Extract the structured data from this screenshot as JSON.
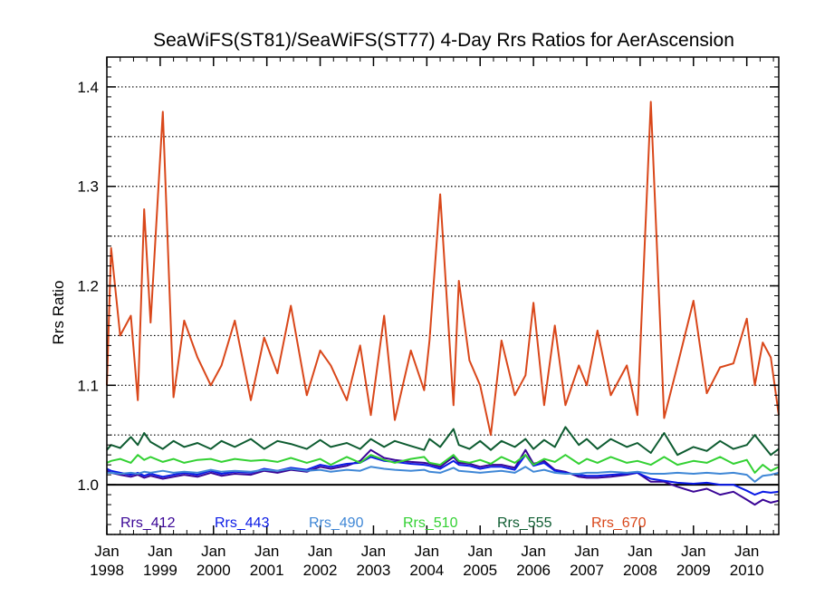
{
  "chart_data": {
    "type": "line",
    "title": "SeaWiFS(ST81)/SeaWiFS(ST77) 4-Day Rrs Ratios for AerAscension",
    "xlabel": "",
    "ylabel": "Rrs Ratio",
    "xlim": [
      1998.0,
      2010.6
    ],
    "ylim": [
      0.95,
      1.43
    ],
    "y_ticks": [
      1.0,
      1.1,
      1.2,
      1.3,
      1.4
    ],
    "y_tick_labels": [
      "1.0",
      "1.1",
      "1.2",
      "1.3",
      "1.4"
    ],
    "y_grid_dotted": [
      0.95,
      1.05,
      1.1,
      1.15,
      1.2,
      1.25,
      1.3,
      1.35,
      1.4
    ],
    "reference_line": 1.0,
    "x_ticks": [
      1998,
      1999,
      2000,
      2001,
      2002,
      2003,
      2004,
      2005,
      2006,
      2007,
      2008,
      2009,
      2010
    ],
    "x_tick_labels": [
      {
        "top": "Jan",
        "bottom": "1998"
      },
      {
        "top": "Jan",
        "bottom": "1999"
      },
      {
        "top": "Jan",
        "bottom": "2000"
      },
      {
        "top": "Jan",
        "bottom": "2001"
      },
      {
        "top": "Jan",
        "bottom": "2002"
      },
      {
        "top": "Jan",
        "bottom": "2003"
      },
      {
        "top": "Jan",
        "bottom": "2004"
      },
      {
        "top": "Jan",
        "bottom": "2005"
      },
      {
        "top": "Jan",
        "bottom": "2006"
      },
      {
        "top": "Jan",
        "bottom": "2007"
      },
      {
        "top": "Jan",
        "bottom": "2008"
      },
      {
        "top": "Jan",
        "bottom": "2009"
      },
      {
        "top": "Jan",
        "bottom": "2010"
      }
    ],
    "legend_position": "bottom",
    "x": [
      1998.0,
      1998.08,
      1998.25,
      1998.45,
      1998.58,
      1998.7,
      1998.82,
      1999.05,
      1999.25,
      1999.45,
      1999.7,
      1999.95,
      2000.15,
      2000.4,
      2000.7,
      2000.95,
      2001.2,
      2001.45,
      2001.75,
      2002.0,
      2002.2,
      2002.5,
      2002.75,
      2002.95,
      2003.2,
      2003.4,
      2003.7,
      2003.95,
      2004.05,
      2004.25,
      2004.5,
      2004.6,
      2004.8,
      2005.0,
      2005.2,
      2005.4,
      2005.65,
      2005.85,
      2006.0,
      2006.2,
      2006.4,
      2006.6,
      2006.85,
      2007.0,
      2007.2,
      2007.45,
      2007.75,
      2007.95,
      2008.2,
      2008.45,
      2008.7,
      2009.0,
      2009.25,
      2009.5,
      2009.75,
      2010.0,
      2010.15,
      2010.3,
      2010.45,
      2010.6
    ],
    "series": [
      {
        "name": "Rrs_412",
        "color": "#3a0596",
        "values": [
          1.014,
          1.012,
          1.01,
          1.008,
          1.01,
          1.007,
          1.009,
          1.006,
          1.008,
          1.01,
          1.008,
          1.012,
          1.009,
          1.011,
          1.01,
          1.014,
          1.012,
          1.015,
          1.013,
          1.018,
          1.016,
          1.019,
          1.024,
          1.035,
          1.027,
          1.025,
          1.023,
          1.022,
          1.021,
          1.018,
          1.028,
          1.022,
          1.021,
          1.018,
          1.02,
          1.02,
          1.017,
          1.035,
          1.021,
          1.024,
          1.015,
          1.013,
          1.008,
          1.007,
          1.007,
          1.008,
          1.01,
          1.012,
          1.003,
          1.003,
          0.998,
          0.993,
          0.996,
          0.99,
          0.993,
          0.985,
          0.98,
          0.985,
          0.982,
          0.984
        ]
      },
      {
        "name": "Rrs_443",
        "color": "#0a1ae6",
        "values": [
          1.016,
          1.014,
          1.012,
          1.01,
          1.012,
          1.009,
          1.011,
          1.008,
          1.01,
          1.012,
          1.01,
          1.014,
          1.011,
          1.013,
          1.012,
          1.016,
          1.014,
          1.017,
          1.015,
          1.02,
          1.018,
          1.021,
          1.022,
          1.028,
          1.024,
          1.023,
          1.021,
          1.02,
          1.019,
          1.016,
          1.024,
          1.02,
          1.019,
          1.016,
          1.018,
          1.018,
          1.015,
          1.03,
          1.019,
          1.022,
          1.014,
          1.012,
          1.01,
          1.009,
          1.009,
          1.01,
          1.011,
          1.012,
          1.006,
          1.004,
          1.002,
          1.001,
          1.002,
          1.0,
          1.0,
          0.994,
          0.99,
          0.993,
          0.992,
          0.993
        ]
      },
      {
        "name": "Rrs_490",
        "color": "#3f87d6",
        "values": [
          1.012,
          1.012,
          1.011,
          1.012,
          1.011,
          1.013,
          1.012,
          1.014,
          1.012,
          1.013,
          1.012,
          1.015,
          1.013,
          1.014,
          1.013,
          1.015,
          1.014,
          1.016,
          1.014,
          1.015,
          1.013,
          1.015,
          1.014,
          1.018,
          1.016,
          1.015,
          1.014,
          1.015,
          1.013,
          1.012,
          1.017,
          1.014,
          1.013,
          1.012,
          1.013,
          1.014,
          1.012,
          1.018,
          1.013,
          1.015,
          1.012,
          1.011,
          1.011,
          1.012,
          1.012,
          1.013,
          1.012,
          1.013,
          1.011,
          1.011,
          1.012,
          1.011,
          1.012,
          1.011,
          1.012,
          1.01,
          1.003,
          1.009,
          1.01,
          1.012
        ]
      },
      {
        "name": "Rrs_510",
        "color": "#33d133",
        "values": [
          1.022,
          1.024,
          1.026,
          1.022,
          1.03,
          1.025,
          1.028,
          1.023,
          1.026,
          1.022,
          1.025,
          1.026,
          1.023,
          1.026,
          1.024,
          1.025,
          1.023,
          1.027,
          1.022,
          1.026,
          1.02,
          1.028,
          1.022,
          1.03,
          1.025,
          1.022,
          1.026,
          1.028,
          1.022,
          1.02,
          1.03,
          1.024,
          1.022,
          1.025,
          1.021,
          1.028,
          1.022,
          1.03,
          1.02,
          1.026,
          1.023,
          1.03,
          1.021,
          1.026,
          1.022,
          1.028,
          1.022,
          1.024,
          1.02,
          1.028,
          1.02,
          1.024,
          1.022,
          1.028,
          1.021,
          1.025,
          1.012,
          1.02,
          1.014,
          1.018
        ]
      },
      {
        "name": "Rrs_555",
        "color": "#0e5c31",
        "values": [
          1.035,
          1.04,
          1.037,
          1.048,
          1.04,
          1.052,
          1.043,
          1.036,
          1.044,
          1.038,
          1.042,
          1.036,
          1.044,
          1.038,
          1.046,
          1.036,
          1.044,
          1.041,
          1.036,
          1.045,
          1.038,
          1.042,
          1.036,
          1.046,
          1.038,
          1.044,
          1.039,
          1.035,
          1.046,
          1.038,
          1.056,
          1.04,
          1.036,
          1.044,
          1.035,
          1.044,
          1.038,
          1.046,
          1.036,
          1.045,
          1.038,
          1.058,
          1.04,
          1.046,
          1.036,
          1.046,
          1.038,
          1.042,
          1.032,
          1.052,
          1.03,
          1.038,
          1.034,
          1.044,
          1.036,
          1.04,
          1.05,
          1.04,
          1.03,
          1.036
        ]
      },
      {
        "name": "Rrs_670",
        "color": "#d9471a",
        "values": [
          1.1,
          1.238,
          1.15,
          1.17,
          1.085,
          1.277,
          1.163,
          1.375,
          1.088,
          1.165,
          1.128,
          1.1,
          1.12,
          1.165,
          1.085,
          1.148,
          1.112,
          1.18,
          1.09,
          1.135,
          1.12,
          1.085,
          1.14,
          1.07,
          1.17,
          1.065,
          1.135,
          1.095,
          1.145,
          1.292,
          1.08,
          1.205,
          1.125,
          1.1,
          1.05,
          1.145,
          1.09,
          1.11,
          1.183,
          1.08,
          1.16,
          1.08,
          1.12,
          1.1,
          1.155,
          1.09,
          1.12,
          1.07,
          1.385,
          1.067,
          1.12,
          1.185,
          1.092,
          1.118,
          1.122,
          1.167,
          1.1,
          1.143,
          1.128,
          1.07
        ]
      }
    ]
  }
}
